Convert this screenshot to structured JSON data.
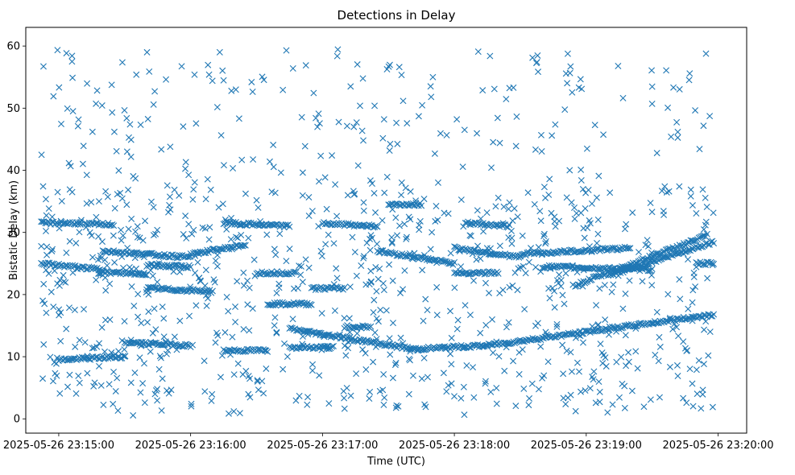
{
  "chart_data": {
    "type": "scatter",
    "title": "Detections in Delay",
    "xlabel": "Time (UTC)",
    "ylabel": "Bistatic Delay (km)",
    "marker": "x",
    "color": "#1f77b4",
    "grid": false,
    "x_tick_labels": [
      "2025-05-26 23:15:00",
      "2025-05-26 23:16:00",
      "2025-05-26 23:17:00",
      "2025-05-26 23:18:00",
      "2025-05-26 23:19:00",
      "2025-05-26 23:20:00"
    ],
    "y_ticks": [
      0,
      10,
      20,
      30,
      40,
      50,
      60
    ],
    "xlim": [
      "2025-05-26 23:14:45",
      "2025-05-26 23:20:13"
    ],
    "ylim": [
      -2.3,
      63
    ],
    "x_range": [
      "2025-05-26 23:14:52",
      "2025-05-26 23:19:58"
    ],
    "y_range": [
      0.5,
      60
    ],
    "tracks": [
      {
        "x": [
          "2025-05-26 23:14:52",
          "2025-05-26 23:15:10"
        ],
        "y": [
          31.5,
          31.5
        ]
      },
      {
        "x": [
          "2025-05-26 23:15:12",
          "2025-05-26 23:15:25"
        ],
        "y": [
          31.3,
          31.3
        ]
      },
      {
        "x": [
          "2025-05-26 23:14:52",
          "2025-05-26 23:15:20"
        ],
        "y": [
          25.0,
          24.0
        ]
      },
      {
        "x": [
          "2025-05-26 23:15:18",
          "2025-05-26 23:15:40"
        ],
        "y": [
          23.6,
          23.3
        ]
      },
      {
        "x": [
          "2025-05-26 23:15:20",
          "2025-05-26 23:16:00"
        ],
        "y": [
          27.0,
          26.0
        ]
      },
      {
        "x": [
          "2025-05-26 23:15:40",
          "2025-05-26 23:16:00"
        ],
        "y": [
          24.7,
          24.5
        ]
      },
      {
        "x": [
          "2025-05-26 23:15:40",
          "2025-05-26 23:16:10"
        ],
        "y": [
          21.0,
          20.5
        ]
      },
      {
        "x": [
          "2025-05-26 23:16:00",
          "2025-05-26 23:16:25"
        ],
        "y": [
          26.5,
          28.0
        ]
      },
      {
        "x": [
          "2025-05-26 23:16:15",
          "2025-05-26 23:16:45"
        ],
        "y": [
          31.5,
          31.0
        ]
      },
      {
        "x": [
          "2025-05-26 23:15:30",
          "2025-05-26 23:16:00"
        ],
        "y": [
          12.3,
          11.8
        ]
      },
      {
        "x": [
          "2025-05-26 23:15:00",
          "2025-05-26 23:15:30"
        ],
        "y": [
          9.5,
          10.0
        ]
      },
      {
        "x": [
          "2025-05-26 23:16:15",
          "2025-05-26 23:16:35"
        ],
        "y": [
          11.0,
          11.0
        ]
      },
      {
        "x": [
          "2025-05-26 23:16:30",
          "2025-05-26 23:16:48"
        ],
        "y": [
          23.5,
          23.5
        ]
      },
      {
        "x": [
          "2025-05-26 23:16:35",
          "2025-05-26 23:16:55"
        ],
        "y": [
          18.5,
          18.5
        ]
      },
      {
        "x": [
          "2025-05-26 23:16:45",
          "2025-05-26 23:17:05"
        ],
        "y": [
          11.5,
          11.5
        ]
      },
      {
        "x": [
          "2025-05-26 23:16:45",
          "2025-05-26 23:17:40"
        ],
        "y": [
          14.5,
          11.3
        ]
      },
      {
        "x": [
          "2025-05-26 23:17:40",
          "2025-05-26 23:18:15"
        ],
        "y": [
          11.2,
          11.8
        ]
      },
      {
        "x": [
          "2025-05-26 23:18:15",
          "2025-05-26 23:19:58"
        ],
        "y": [
          11.8,
          16.8
        ]
      },
      {
        "x": [
          "2025-05-26 23:16:55",
          "2025-05-26 23:17:10"
        ],
        "y": [
          21.0,
          21.0
        ]
      },
      {
        "x": [
          "2025-05-26 23:17:00",
          "2025-05-26 23:17:25"
        ],
        "y": [
          31.5,
          31.0
        ]
      },
      {
        "x": [
          "2025-05-26 23:17:25",
          "2025-05-26 23:18:00"
        ],
        "y": [
          27.0,
          25.0
        ]
      },
      {
        "x": [
          "2025-05-26 23:17:10",
          "2025-05-26 23:17:22"
        ],
        "y": [
          14.8,
          14.8
        ]
      },
      {
        "x": [
          "2025-05-26 23:17:30",
          "2025-05-26 23:17:45"
        ],
        "y": [
          34.5,
          34.5
        ]
      },
      {
        "x": [
          "2025-05-26 23:18:00",
          "2025-05-26 23:18:30"
        ],
        "y": [
          27.5,
          26.0
        ]
      },
      {
        "x": [
          "2025-05-26 23:18:05",
          "2025-05-26 23:18:25"
        ],
        "y": [
          31.5,
          31.0
        ]
      },
      {
        "x": [
          "2025-05-26 23:18:30",
          "2025-05-26 23:19:20"
        ],
        "y": [
          26.5,
          27.5
        ]
      },
      {
        "x": [
          "2025-05-26 23:18:40",
          "2025-05-26 23:19:30"
        ],
        "y": [
          24.5,
          24.0
        ]
      },
      {
        "x": [
          "2025-05-26 23:18:55",
          "2025-05-26 23:19:55"
        ],
        "y": [
          21.5,
          29.5
        ]
      },
      {
        "x": [
          "2025-05-26 23:19:10",
          "2025-05-26 23:19:58"
        ],
        "y": [
          23.0,
          28.5
        ]
      },
      {
        "x": [
          "2025-05-26 23:18:00",
          "2025-05-26 23:18:20"
        ],
        "y": [
          23.5,
          23.5
        ]
      },
      {
        "x": [
          "2025-05-26 23:19:50",
          "2025-05-26 23:19:58"
        ],
        "y": [
          25.0,
          25.0
        ]
      }
    ]
  }
}
